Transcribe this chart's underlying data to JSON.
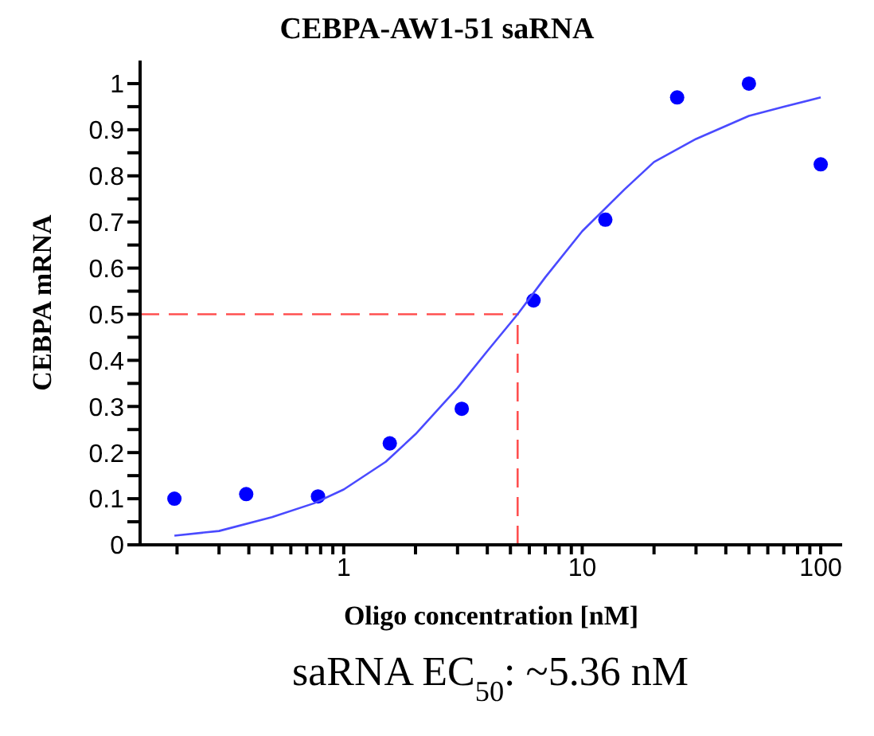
{
  "chart_data": {
    "type": "scatter",
    "title": "CEBPA-AW1-51 saRNA",
    "xlabel": "Oligo concentration [nM]",
    "ylabel": "CEBPA mRNA",
    "log": "x",
    "x": [
      0.195,
      0.39,
      0.78,
      1.56,
      3.125,
      6.25,
      12.5,
      25,
      50,
      100
    ],
    "series": [
      {
        "color": "#0000ff",
        "marker": "circle",
        "values": [
          0.1,
          0.11,
          0.105,
          0.22,
          0.295,
          0.53,
          0.705,
          0.97,
          1.0,
          0.825
        ]
      },
      {
        "type": "line",
        "marker": "none",
        "color": "#4a4aff",
        "x": [
          0.195,
          0.3,
          0.5,
          0.75,
          1,
          1.5,
          2,
          3,
          4,
          5.36,
          7,
          10,
          15,
          20,
          30,
          50,
          70,
          100
        ],
        "values": [
          0.02,
          0.03,
          0.06,
          0.09,
          0.12,
          0.18,
          0.24,
          0.34,
          0.42,
          0.5,
          0.58,
          0.68,
          0.77,
          0.83,
          0.88,
          0.93,
          0.95,
          0.97
        ]
      }
    ],
    "xlim": [
      0.14,
      123
    ],
    "xticks": [
      {
        "value": 0.2,
        "label": null
      },
      {
        "value": 0.3,
        "label": null
      },
      {
        "value": 0.4,
        "label": null
      },
      {
        "value": 0.5,
        "label": null
      },
      {
        "value": 0.6,
        "label": null
      },
      {
        "value": 0.7,
        "label": null
      },
      {
        "value": 0.8,
        "label": null
      },
      {
        "value": 0.9,
        "label": null
      },
      1,
      {
        "value": 2,
        "label": null
      },
      {
        "value": 3,
        "label": null
      },
      {
        "value": 4,
        "label": null
      },
      {
        "value": 5,
        "label": null
      },
      {
        "value": 6,
        "label": null
      },
      {
        "value": 7,
        "label": null
      },
      {
        "value": 8,
        "label": null
      },
      {
        "value": 9,
        "label": null
      },
      10,
      {
        "value": 20,
        "label": null
      },
      {
        "value": 30,
        "label": null
      },
      {
        "value": 40,
        "label": null
      },
      {
        "value": 50,
        "label": null
      },
      {
        "value": 60,
        "label": null
      },
      {
        "value": 70,
        "label": null
      },
      {
        "value": 80,
        "label": null
      },
      {
        "value": 90,
        "label": null
      },
      100
    ],
    "ylim": [
      0,
      1.05
    ],
    "yticks": [
      0,
      {
        "value": 0.05,
        "label": null
      },
      0.1,
      {
        "value": 0.15,
        "label": null
      },
      0.2,
      {
        "value": 0.25,
        "label": null
      },
      0.3,
      {
        "value": 0.35,
        "label": null
      },
      0.4,
      {
        "value": 0.45,
        "label": null
      },
      0.5,
      {
        "value": 0.55,
        "label": null
      },
      0.6,
      {
        "value": 0.65,
        "label": null
      },
      0.7,
      {
        "value": 0.75,
        "label": null
      },
      0.8,
      {
        "value": 0.85,
        "label": null
      },
      0.9,
      {
        "value": 0.95,
        "label": null
      },
      1
    ],
    "ref_lines": [
      {
        "axis": "y",
        "value": 0.5,
        "color": "#ff5050",
        "line_style": "dashed"
      },
      {
        "axis": "x",
        "value": 5.36,
        "color": "#ff5050",
        "line_style": "dashed"
      }
    ],
    "annotations": [
      "saRNA EC$_{50}$: ~5.36 nM"
    ]
  }
}
